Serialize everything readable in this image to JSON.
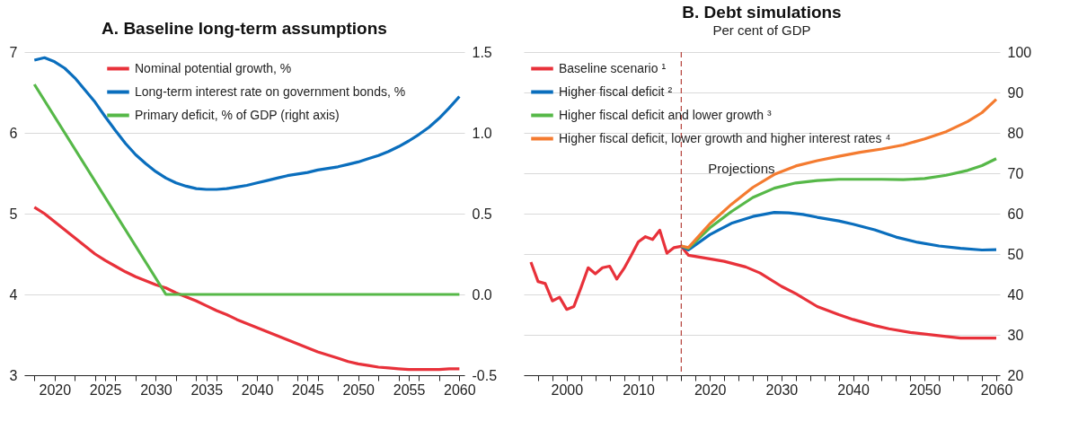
{
  "chart_data": [
    {
      "type": "line",
      "title": "A. Baseline long-term assumptions",
      "x": [
        2018,
        2019,
        2020,
        2021,
        2022,
        2023,
        2024,
        2025,
        2026,
        2027,
        2028,
        2029,
        2030,
        2031,
        2032,
        2033,
        2034,
        2035,
        2036,
        2037,
        2038,
        2039,
        2040,
        2041,
        2042,
        2043,
        2044,
        2045,
        2046,
        2047,
        2048,
        2049,
        2050,
        2051,
        2052,
        2053,
        2054,
        2055,
        2056,
        2057,
        2058,
        2059,
        2060
      ],
      "series": [
        {
          "name": "Nominal potential growth, %",
          "color": "#e8313a",
          "values": [
            5.08,
            5.0,
            4.9,
            4.8,
            4.7,
            4.6,
            4.5,
            4.42,
            4.35,
            4.28,
            4.22,
            4.17,
            4.12,
            4.08,
            4.02,
            3.97,
            3.92,
            3.86,
            3.8,
            3.75,
            3.69,
            3.64,
            3.59,
            3.54,
            3.49,
            3.44,
            3.39,
            3.34,
            3.29,
            3.25,
            3.21,
            3.17,
            3.14,
            3.12,
            3.1,
            3.09,
            3.08,
            3.07,
            3.07,
            3.07,
            3.07,
            3.08,
            3.08
          ]
        },
        {
          "name": "Long-term interest rate on government bonds, %",
          "color": "#0a6ebd",
          "values": [
            6.9,
            6.93,
            6.88,
            6.8,
            6.68,
            6.53,
            6.38,
            6.2,
            6.03,
            5.87,
            5.73,
            5.62,
            5.52,
            5.44,
            5.38,
            5.34,
            5.31,
            5.3,
            5.3,
            5.31,
            5.33,
            5.35,
            5.38,
            5.41,
            5.44,
            5.47,
            5.49,
            5.51,
            5.54,
            5.56,
            5.58,
            5.61,
            5.64,
            5.68,
            5.72,
            5.77,
            5.83,
            5.9,
            5.98,
            6.07,
            6.18,
            6.31,
            6.45
          ]
        },
        {
          "name": "Primary deficit, % of GDP (right axis)",
          "color": "#56b848",
          "axis": "y2",
          "x": [
            2018,
            2019,
            2020,
            2021,
            2022,
            2023,
            2024,
            2025,
            2026,
            2027,
            2028,
            2029,
            2030,
            2031,
            2060
          ],
          "values": [
            1.3,
            1.2,
            1.1,
            1.0,
            0.9,
            0.8,
            0.7,
            0.6,
            0.5,
            0.4,
            0.3,
            0.2,
            0.1,
            0.0,
            0.0
          ]
        }
      ],
      "xlim": [
        2017,
        2060.5
      ],
      "xticks": [
        {
          "value": 2018,
          "label": null
        },
        2020,
        {
          "value": 2022,
          "label": null
        },
        {
          "value": 2024,
          "label": null
        },
        2025,
        {
          "value": 2026,
          "label": null
        },
        {
          "value": 2028,
          "label": null
        },
        2030,
        {
          "value": 2032,
          "label": null
        },
        {
          "value": 2034,
          "label": null
        },
        2035,
        {
          "value": 2036,
          "label": null
        },
        {
          "value": 2038,
          "label": null
        },
        2040,
        {
          "value": 2042,
          "label": null
        },
        {
          "value": 2044,
          "label": null
        },
        2045,
        {
          "value": 2046,
          "label": null
        },
        {
          "value": 2048,
          "label": null
        },
        2050,
        {
          "value": 2052,
          "label": null
        },
        {
          "value": 2054,
          "label": null
        },
        2055,
        {
          "value": 2056,
          "label": null
        },
        {
          "value": 2058,
          "label": null
        },
        2060
      ],
      "ylim": [
        3,
        7
      ],
      "yticks": [
        3,
        4,
        5,
        6,
        7
      ],
      "y2lim": [
        -0.5,
        1.5
      ],
      "y2ticks": [
        -0.5,
        {
          "value": 0,
          "label": "0.0"
        },
        0.5,
        {
          "value": 1,
          "label": "1.0"
        },
        1.5
      ],
      "grid": "y",
      "legend": "top",
      "marker": "none",
      "line_style": "solid"
    },
    {
      "type": "line",
      "title": "B. Debt simulations",
      "subtitle": "Per cent of GDP",
      "series": [
        {
          "name": "Baseline scenario ¹",
          "color": "#e8313a",
          "x": [
            1995,
            1996,
            1997,
            1998,
            1999,
            2000,
            2001,
            2002,
            2003,
            2004,
            2005,
            2006,
            2007,
            2008,
            2009,
            2010,
            2011,
            2012,
            2013,
            2014,
            2015,
            2016,
            2017,
            2020,
            2022,
            2025,
            2027,
            2030,
            2032,
            2035,
            2038,
            2040,
            2043,
            2045,
            2048,
            2050,
            2053,
            2055,
            2060
          ],
          "values": [
            48.0,
            43.2,
            42.7,
            38.4,
            39.3,
            36.3,
            37.0,
            41.7,
            46.6,
            45.1,
            46.6,
            47.0,
            43.8,
            46.4,
            49.6,
            53.0,
            54.3,
            53.6,
            55.9,
            50.2,
            51.6,
            51.9,
            49.7,
            48.8,
            48.2,
            46.8,
            45.3,
            42.0,
            40.2,
            37.0,
            35.0,
            33.8,
            32.3,
            31.5,
            30.6,
            30.2,
            29.6,
            29.2,
            29.2
          ]
        },
        {
          "name": "Higher fiscal deficit ²",
          "color": "#0a6ebd",
          "x": [
            2016,
            2017,
            2020,
            2023,
            2026,
            2029,
            2031,
            2033,
            2035,
            2038,
            2040,
            2043,
            2046,
            2049,
            2052,
            2055,
            2058,
            2060
          ],
          "values": [
            51.9,
            51.0,
            54.8,
            57.6,
            59.3,
            60.3,
            60.2,
            59.8,
            59.1,
            58.2,
            57.4,
            56.0,
            54.2,
            52.9,
            52.0,
            51.4,
            51.0,
            51.1
          ]
        },
        {
          "name": "Higher fiscal deficit and lower growth ³",
          "color": "#56b848",
          "x": [
            2016,
            2017,
            2020,
            2023,
            2026,
            2029,
            2032,
            2035,
            2038,
            2041,
            2044,
            2047,
            2050,
            2053,
            2056,
            2058,
            2060
          ],
          "values": [
            52.0,
            51.4,
            56.5,
            60.5,
            64.0,
            66.3,
            67.6,
            68.2,
            68.5,
            68.5,
            68.5,
            68.4,
            68.7,
            69.5,
            70.7,
            71.9,
            73.6
          ]
        },
        {
          "name": "Higher fiscal deficit, lower growth and higher interest rates ⁴",
          "color": "#f47b30",
          "x": [
            2016,
            2017,
            2020,
            2023,
            2026,
            2029,
            2032,
            2035,
            2038,
            2041,
            2044,
            2047,
            2050,
            2053,
            2056,
            2058,
            2060
          ],
          "values": [
            52.0,
            51.6,
            57.5,
            62.3,
            66.5,
            69.7,
            71.8,
            73.1,
            74.2,
            75.2,
            76.0,
            77.0,
            78.5,
            80.3,
            82.8,
            85.0,
            88.3
          ]
        }
      ],
      "xlim": [
        1994,
        2060.5
      ],
      "xticks": [
        {
          "value": 1996,
          "label": null
        },
        {
          "value": 1998,
          "label": null
        },
        2000,
        {
          "value": 2002,
          "label": null
        },
        {
          "value": 2004,
          "label": null
        },
        {
          "value": 2006,
          "label": null
        },
        {
          "value": 2008,
          "label": null
        },
        2010,
        {
          "value": 2012,
          "label": null
        },
        {
          "value": 2014,
          "label": null
        },
        {
          "value": 2016,
          "label": null
        },
        {
          "value": 2018,
          "label": null
        },
        2020,
        {
          "value": 2022,
          "label": null
        },
        {
          "value": 2024,
          "label": null
        },
        {
          "value": 2026,
          "label": null
        },
        {
          "value": 2028,
          "label": null
        },
        2030,
        {
          "value": 2032,
          "label": null
        },
        {
          "value": 2034,
          "label": null
        },
        {
          "value": 2036,
          "label": null
        },
        {
          "value": 2038,
          "label": null
        },
        2040,
        {
          "value": 2042,
          "label": null
        },
        {
          "value": 2044,
          "label": null
        },
        {
          "value": 2046,
          "label": null
        },
        {
          "value": 2048,
          "label": null
        },
        2050,
        {
          "value": 2052,
          "label": null
        },
        {
          "value": 2054,
          "label": null
        },
        {
          "value": 2056,
          "label": null
        },
        {
          "value": 2058,
          "label": null
        },
        2060
      ],
      "ylim": [
        20,
        100
      ],
      "yticks": [
        20,
        30,
        40,
        50,
        60,
        70,
        80,
        90,
        100
      ],
      "ref_lines": [
        {
          "axis": "x",
          "value": 2016,
          "color": "#b5403a",
          "line_style": "dashed"
        }
      ],
      "annotations": [
        "Projections"
      ],
      "grid": "y",
      "legend": "top left",
      "marker": "none",
      "line_style": "solid"
    }
  ]
}
